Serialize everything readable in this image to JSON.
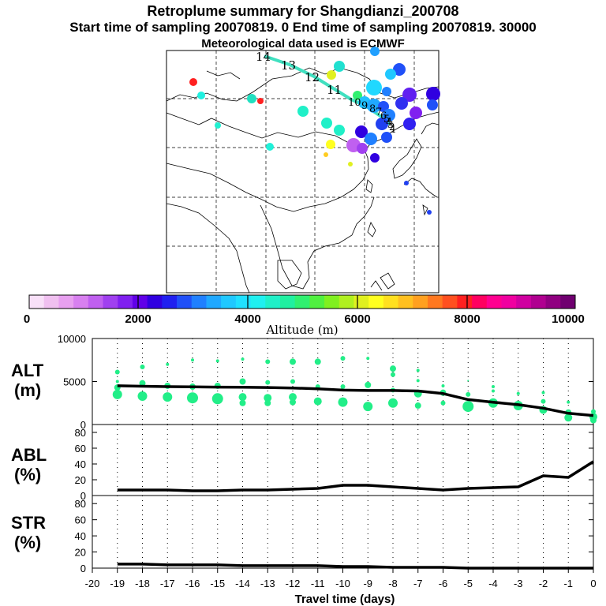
{
  "header": {
    "title": "Retroplume summary for Shangdianzi_200708",
    "sampling_line": "Start time of sampling 20070819.    0     End time of sampling 20070819. 30000",
    "met_line": "Meteorological data used is ECMWF"
  },
  "colors": {
    "plume": "#22ee88",
    "line": "#000000",
    "scale": [
      "#f8e0f8",
      "#f0c0f0",
      "#e8a0f0",
      "#d880f0",
      "#c060f0",
      "#a040f0",
      "#8020f0",
      "#6000e8",
      "#3000e0",
      "#2020f0",
      "#2050f8",
      "#2080ff",
      "#20a8ff",
      "#20c8ff",
      "#20e0ff",
      "#20f0f0",
      "#20f0c8",
      "#20f0a0",
      "#30f070",
      "#50f040",
      "#80f020",
      "#b0f020",
      "#e0f020",
      "#ffff20",
      "#ffe020",
      "#ffc020",
      "#ffa020",
      "#ff7820",
      "#ff5020",
      "#ff2020",
      "#ff0060",
      "#ff0090",
      "#f000a0",
      "#d000a0",
      "#b00090",
      "#900080",
      "#700070"
    ]
  },
  "map": {
    "labels": [
      {
        "text": "14",
        "color": "#111111"
      },
      {
        "text": "13",
        "color": "#111111"
      },
      {
        "text": "12",
        "color": "#111111"
      },
      {
        "text": "11",
        "color": "#111111"
      },
      {
        "text": "10",
        "color": "#111111"
      },
      {
        "text": "9",
        "color": "#111111"
      },
      {
        "text": "8",
        "color": "#111111"
      },
      {
        "text": "7",
        "color": "#111111"
      },
      {
        "text": "6",
        "color": "#111111"
      },
      {
        "text": "5",
        "color": "#111111"
      },
      {
        "text": "4",
        "color": "#111111"
      },
      {
        "text": "3",
        "color": "#111111"
      },
      {
        "text": "2",
        "color": "#111111"
      },
      {
        "text": "1",
        "color": "#111111"
      }
    ]
  },
  "colorbar": {
    "tick_labels": [
      "0",
      "2000",
      "4000",
      "6000",
      "8000",
      "10000"
    ],
    "axis_label": "Altitude (m)"
  },
  "panels": {
    "alt": {
      "label_top": "ALT",
      "label_bottom": "(m)"
    },
    "abl": {
      "label_top": "ABL",
      "label_bottom": "(%)"
    },
    "str": {
      "label_top": "STR",
      "label_bottom": "(%)"
    }
  },
  "chart_data": [
    {
      "type": "line",
      "title": "ALT",
      "xlabel": "Travel time (days)",
      "ylabel": "(m)",
      "xlim": [
        -20,
        0
      ],
      "ylim": [
        0,
        10000
      ],
      "yticks": [
        0,
        5000,
        10000
      ],
      "x": [
        -19,
        -18,
        -17,
        -16,
        -15,
        -14,
        -13,
        -12,
        -11,
        -10,
        -9,
        -8,
        -7,
        -6,
        -5,
        -4,
        -3,
        -2,
        -1,
        0
      ],
      "series": [
        {
          "name": "mean altitude",
          "values": [
            4500,
            4450,
            4400,
            4380,
            4350,
            4330,
            4300,
            4250,
            4150,
            4000,
            3950,
            3950,
            3900,
            3600,
            2900,
            2600,
            2300,
            1900,
            1300,
            1050
          ]
        }
      ],
      "scatter": {
        "name": "plume altitude clusters",
        "points": [
          {
            "x": -19,
            "y": 6100,
            "s": 3
          },
          {
            "x": -19,
            "y": 5000,
            "s": 2
          },
          {
            "x": -19,
            "y": 4300,
            "s": 4
          },
          {
            "x": -19,
            "y": 3500,
            "s": 6
          },
          {
            "x": -18,
            "y": 6700,
            "s": 3
          },
          {
            "x": -18,
            "y": 4800,
            "s": 4
          },
          {
            "x": -18,
            "y": 3300,
            "s": 6
          },
          {
            "x": -17,
            "y": 7000,
            "s": 2
          },
          {
            "x": -17,
            "y": 4500,
            "s": 4
          },
          {
            "x": -17,
            "y": 3200,
            "s": 6
          },
          {
            "x": -16,
            "y": 7500,
            "s": 2
          },
          {
            "x": -16,
            "y": 4400,
            "s": 4
          },
          {
            "x": -16,
            "y": 3100,
            "s": 7
          },
          {
            "x": -15,
            "y": 7400,
            "s": 2
          },
          {
            "x": -15,
            "y": 4500,
            "s": 4
          },
          {
            "x": -15,
            "y": 3000,
            "s": 7
          },
          {
            "x": -14,
            "y": 7600,
            "s": 2
          },
          {
            "x": -14,
            "y": 5000,
            "s": 4
          },
          {
            "x": -14,
            "y": 3200,
            "s": 5
          },
          {
            "x": -14,
            "y": 2500,
            "s": 4
          },
          {
            "x": -13,
            "y": 7300,
            "s": 3
          },
          {
            "x": -13,
            "y": 4900,
            "s": 3
          },
          {
            "x": -13,
            "y": 3100,
            "s": 5
          },
          {
            "x": -13,
            "y": 2500,
            "s": 4
          },
          {
            "x": -12,
            "y": 7300,
            "s": 4
          },
          {
            "x": -12,
            "y": 5000,
            "s": 3
          },
          {
            "x": -12,
            "y": 3200,
            "s": 5
          },
          {
            "x": -12,
            "y": 2600,
            "s": 4
          },
          {
            "x": -11,
            "y": 7300,
            "s": 4
          },
          {
            "x": -11,
            "y": 4400,
            "s": 3
          },
          {
            "x": -11,
            "y": 2700,
            "s": 5
          },
          {
            "x": -10,
            "y": 7700,
            "s": 3
          },
          {
            "x": -10,
            "y": 4400,
            "s": 3
          },
          {
            "x": -10,
            "y": 2600,
            "s": 6
          },
          {
            "x": -9,
            "y": 7700,
            "s": 2
          },
          {
            "x": -9,
            "y": 4600,
            "s": 4
          },
          {
            "x": -9,
            "y": 2100,
            "s": 6
          },
          {
            "x": -8,
            "y": 6500,
            "s": 4
          },
          {
            "x": -8,
            "y": 5800,
            "s": 3
          },
          {
            "x": -8,
            "y": 4000,
            "s": 3
          },
          {
            "x": -8,
            "y": 2500,
            "s": 6
          },
          {
            "x": -7,
            "y": 6300,
            "s": 2
          },
          {
            "x": -7,
            "y": 5100,
            "s": 2
          },
          {
            "x": -7,
            "y": 3600,
            "s": 5
          },
          {
            "x": -7,
            "y": 2200,
            "s": 4
          },
          {
            "x": -6,
            "y": 4500,
            "s": 2
          },
          {
            "x": -6,
            "y": 3700,
            "s": 4
          },
          {
            "x": -6,
            "y": 2500,
            "s": 3
          },
          {
            "x": -5,
            "y": 5100,
            "s": 1
          },
          {
            "x": -5,
            "y": 3500,
            "s": 3
          },
          {
            "x": -5,
            "y": 2100,
            "s": 7
          },
          {
            "x": -4,
            "y": 4400,
            "s": 2
          },
          {
            "x": -4,
            "y": 3900,
            "s": 2
          },
          {
            "x": -4,
            "y": 2500,
            "s": 6
          },
          {
            "x": -3,
            "y": 3600,
            "s": 2
          },
          {
            "x": -3,
            "y": 2200,
            "s": 6
          },
          {
            "x": -2,
            "y": 3700,
            "s": 2
          },
          {
            "x": -2,
            "y": 2700,
            "s": 3
          },
          {
            "x": -2,
            "y": 1700,
            "s": 5
          },
          {
            "x": -1,
            "y": 2600,
            "s": 2
          },
          {
            "x": -1,
            "y": 1400,
            "s": 4
          },
          {
            "x": -1,
            "y": 800,
            "s": 5
          },
          {
            "x": 0,
            "y": 1500,
            "s": 3
          },
          {
            "x": 0,
            "y": 900,
            "s": 5
          },
          {
            "x": 0,
            "y": 500,
            "s": 4
          }
        ]
      }
    },
    {
      "type": "line",
      "title": "ABL",
      "xlabel": "Travel time (days)",
      "ylabel": "(%)",
      "xlim": [
        -20,
        0
      ],
      "ylim": [
        0,
        90
      ],
      "yticks": [
        0,
        20,
        40,
        60,
        80
      ],
      "x": [
        -19,
        -18,
        -17,
        -16,
        -15,
        -14,
        -13,
        -12,
        -11,
        -10,
        -9,
        -8,
        -7,
        -6,
        -5,
        -4,
        -3,
        -2,
        -1,
        0
      ],
      "series": [
        {
          "name": "ABL fraction",
          "values": [
            7,
            7,
            7,
            6,
            6,
            7,
            7,
            8,
            9,
            13,
            13,
            11,
            9,
            7,
            9,
            10,
            11,
            25,
            23,
            43
          ]
        }
      ]
    },
    {
      "type": "line",
      "title": "STR",
      "xlabel": "Travel time (days)",
      "ylabel": "(%)",
      "xlim": [
        -20,
        0
      ],
      "ylim": [
        0,
        90
      ],
      "yticks": [
        0,
        20,
        40,
        60,
        80
      ],
      "x": [
        -19,
        -18,
        -17,
        -16,
        -15,
        -14,
        -13,
        -12,
        -11,
        -10,
        -9,
        -8,
        -7,
        -6,
        -5,
        -4,
        -3,
        -2,
        -1,
        0
      ],
      "series": [
        {
          "name": "STR fraction",
          "values": [
            5,
            5,
            4,
            4,
            4,
            3,
            3,
            3,
            3,
            2,
            2,
            1,
            1,
            1,
            0,
            0,
            0,
            0,
            0,
            0
          ]
        }
      ],
      "xticks": [
        -20,
        -19,
        -18,
        -17,
        -16,
        -15,
        -14,
        -13,
        -12,
        -11,
        -10,
        -9,
        -8,
        -7,
        -6,
        -5,
        -4,
        -3,
        -2,
        -1,
        0
      ]
    }
  ]
}
